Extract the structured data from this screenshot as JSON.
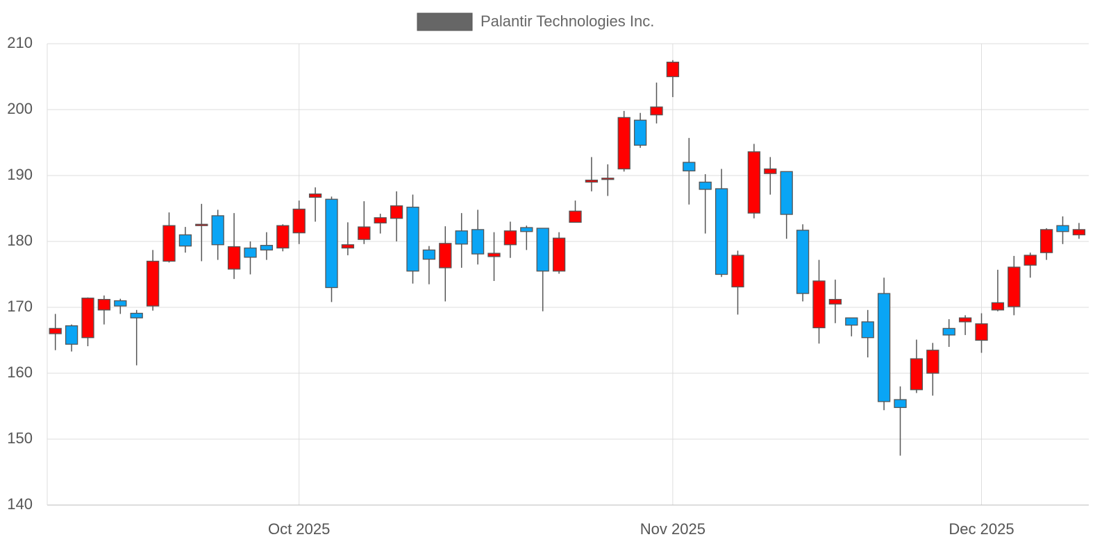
{
  "chart_data": {
    "type": "candlestick",
    "x": [
      "2025-09-10",
      "2025-09-11",
      "2025-09-12",
      "2025-09-15",
      "2025-09-16",
      "2025-09-17",
      "2025-09-18",
      "2025-09-19",
      "2025-09-22",
      "2025-09-23",
      "2025-09-24",
      "2025-09-25",
      "2025-09-26",
      "2025-09-29",
      "2025-09-30",
      "2025-10-01",
      "2025-10-02",
      "2025-10-03",
      "2025-10-06",
      "2025-10-07",
      "2025-10-08",
      "2025-10-09",
      "2025-10-10",
      "2025-10-13",
      "2025-10-14",
      "2025-10-15",
      "2025-10-16",
      "2025-10-17",
      "2025-10-20",
      "2025-10-21",
      "2025-10-22",
      "2025-10-23",
      "2025-10-24",
      "2025-10-27",
      "2025-10-28",
      "2025-10-29",
      "2025-10-30",
      "2025-10-31",
      "2025-11-03",
      "2025-11-04",
      "2025-11-05",
      "2025-11-06",
      "2025-11-07",
      "2025-11-10",
      "2025-11-11",
      "2025-11-12",
      "2025-11-13",
      "2025-11-14",
      "2025-11-17",
      "2025-11-18",
      "2025-11-19",
      "2025-11-20",
      "2025-11-21",
      "2025-11-24",
      "2025-11-25",
      "2025-11-26",
      "2025-11-28",
      "2025-12-01",
      "2025-12-02",
      "2025-12-03",
      "2025-12-04",
      "2025-12-05",
      "2025-12-08",
      "2025-12-09"
    ],
    "series": [
      {
        "name": "Palantir Technologies Inc.",
        "color": "#666666",
        "increasing_color": "#ff0000",
        "decreasing_color": "#0aa5f5",
        "open": [
          166,
          167.2,
          165.4,
          169.6,
          171,
          169.1,
          170.2,
          177,
          181,
          182.4,
          183.9,
          175.8,
          179,
          179.4,
          179,
          181.3,
          186.7,
          186.4,
          179,
          180.3,
          182.8,
          183.5,
          185.2,
          178.7,
          176,
          181.6,
          181.8,
          177.7,
          179.5,
          182.1,
          182,
          175.5,
          182.9,
          189,
          189.4,
          191,
          198.4,
          199.2,
          205,
          192,
          189,
          188,
          173.1,
          184.3,
          190.3,
          190.6,
          181.7,
          166.9,
          170.5,
          168.4,
          167.8,
          172.1,
          156,
          157.5,
          160,
          166.8,
          167.8,
          165,
          169.6,
          170.1,
          176.4,
          178.3,
          182.4,
          181
        ],
        "high": [
          169,
          167.4,
          171.5,
          171.8,
          171.3,
          169.6,
          178.7,
          184.4,
          182.2,
          185.7,
          184.8,
          184.3,
          180,
          181.4,
          182.6,
          186.2,
          188.2,
          186.8,
          182.9,
          186.1,
          184.2,
          187.6,
          187.1,
          179.3,
          182.3,
          184.3,
          184.8,
          181.4,
          183,
          182.4,
          182,
          181.4,
          186.2,
          192.8,
          191.7,
          199.8,
          199.5,
          204.1,
          207.5,
          195.7,
          190.2,
          191,
          178.6,
          194.8,
          192.8,
          190.6,
          182.6,
          177.2,
          174.2,
          168.4,
          169.6,
          174.5,
          158,
          165.1,
          164.6,
          168.2,
          168.8,
          169.1,
          175.7,
          177.8,
          178.3,
          182,
          183.8,
          182.8
        ],
        "low": [
          163.5,
          163.3,
          164.1,
          167.4,
          169,
          161.2,
          169.5,
          176.8,
          178.3,
          177,
          177.2,
          174.3,
          175,
          177.2,
          178.5,
          179.6,
          183,
          170.8,
          177.9,
          179.6,
          181.2,
          180,
          173.6,
          173.5,
          170.9,
          176,
          176.5,
          174,
          177.5,
          178.7,
          169.4,
          175.1,
          182.9,
          187.6,
          186.9,
          190.6,
          194.2,
          197.9,
          201.9,
          185.6,
          181.2,
          174.6,
          168.9,
          183.5,
          187.1,
          180.4,
          170.9,
          164.5,
          167.6,
          165.6,
          162.4,
          154.4,
          147.5,
          157,
          156.6,
          164,
          165.8,
          163.1,
          169.4,
          168.8,
          174.5,
          177.2,
          179.6,
          180.4
        ],
        "close": [
          166.8,
          164.4,
          171.4,
          171.2,
          170.2,
          168.4,
          177,
          182.4,
          179.3,
          182.6,
          179.5,
          179.2,
          177.6,
          178.7,
          182.4,
          184.9,
          187.2,
          173,
          179.5,
          182.2,
          183.6,
          185.4,
          175.5,
          177.3,
          179.7,
          179.6,
          178.1,
          178.2,
          181.6,
          181.5,
          175.5,
          180.5,
          184.6,
          189.3,
          189.6,
          198.8,
          194.6,
          200.4,
          207.2,
          190.7,
          187.9,
          175,
          177.9,
          193.6,
          191,
          184.1,
          172.1,
          174,
          171.2,
          167.3,
          165.4,
          155.7,
          154.8,
          162.2,
          163.5,
          165.8,
          168.4,
          167.5,
          170.7,
          176.1,
          177.9,
          181.8,
          181.5,
          181.8
        ]
      }
    ],
    "ylim": [
      140,
      210
    ],
    "yticks": [
      140,
      150,
      160,
      170,
      180,
      190,
      200,
      210
    ],
    "xticks": [
      {
        "value": "2025-10-01",
        "label": "Oct 2025"
      },
      {
        "value": "2025-11-01",
        "label": "Nov 2025"
      },
      {
        "value": "2025-12-01",
        "label": "Dec 2025"
      }
    ],
    "grid": true
  }
}
